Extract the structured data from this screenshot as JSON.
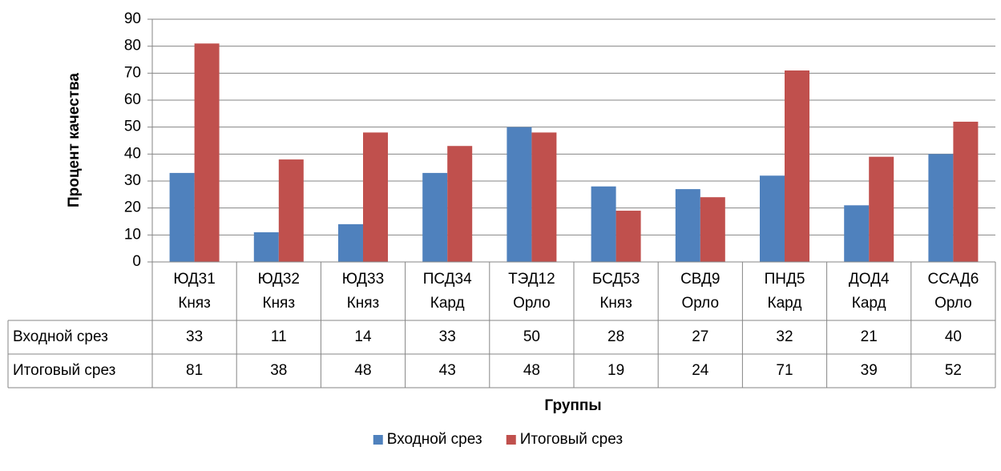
{
  "chart_data": {
    "type": "bar",
    "y_label": "Процент качества",
    "x_label": "Группы",
    "categories": [
      "ЮД31 Княз",
      "ЮД32 Княз",
      "ЮД33 Княз",
      "ПСД34 Кард",
      "ТЭД12 Орло",
      "БСД53 Княз",
      "СВД9 Орло",
      "ПНД5 Кард",
      "ДОД4 Кард",
      "ССАД6 Орло"
    ],
    "series": [
      {
        "name": "Входной срез",
        "color": "#4f81bd",
        "values": [
          33,
          11,
          14,
          33,
          50,
          28,
          27,
          32,
          21,
          40
        ]
      },
      {
        "name": "Итоговый срез",
        "color": "#c0504d",
        "values": [
          81,
          38,
          48,
          43,
          48,
          19,
          24,
          71,
          39,
          52
        ]
      }
    ],
    "ylim": [
      0,
      90
    ],
    "yticks": [
      0,
      10,
      20,
      30,
      40,
      50,
      60,
      70,
      80,
      90
    ],
    "grid": true,
    "legend": "bottom",
    "data_table": true
  }
}
